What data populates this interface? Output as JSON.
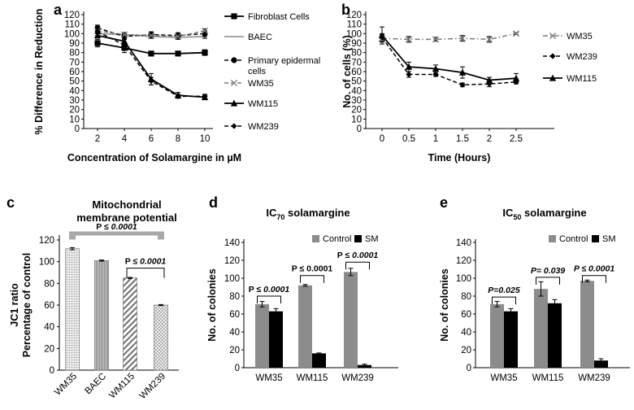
{
  "chart_data": [
    {
      "id": "a",
      "panel_label": "a",
      "type": "line",
      "xlabel": "Concentration of Solamargine in µM",
      "ylabel": "% Difference in Reduction",
      "x": [
        2,
        4,
        6,
        8,
        10
      ],
      "xticks": [
        "2",
        "4",
        "6",
        "8",
        "10"
      ],
      "yticks": [
        "0",
        "10",
        "20",
        "30",
        "40",
        "50",
        "60",
        "70",
        "80",
        "90",
        "100",
        "110",
        "120"
      ],
      "ylim": [
        0,
        120
      ],
      "series": [
        {
          "name": "Fibroblast Cells",
          "label_lines": [
            "Fibroblast Cells"
          ],
          "values": [
            90,
            85,
            79,
            79,
            80
          ],
          "errors": [
            4,
            5,
            2,
            2,
            3
          ],
          "marker": "square",
          "dash": "solid",
          "color": "#000000"
        },
        {
          "name": "BAEC",
          "label_lines": [
            "BAEC"
          ],
          "values": [
            100,
            99,
            97,
            96,
            97
          ],
          "errors": [
            2,
            2,
            2,
            2,
            2
          ],
          "marker": "none",
          "dash": "solid",
          "color": "#9a9a9a"
        },
        {
          "name": "Primary epidermal cells",
          "label_lines": [
            "Primary epidermal",
            "cells"
          ],
          "values": [
            106,
            97,
            99,
            98,
            100
          ],
          "errors": [
            3,
            3,
            3,
            3,
            3
          ],
          "marker": "circle",
          "dash": "dashed",
          "color": "#000000"
        },
        {
          "name": "WM35",
          "label_lines": [
            "WM35"
          ],
          "values": [
            103,
            99,
            98,
            97,
            103
          ],
          "errors": [
            2,
            2,
            2,
            2,
            2
          ],
          "marker": "x",
          "dash": "dashed",
          "color": "#7a7a7a"
        },
        {
          "name": "WM115",
          "label_lines": [
            "WM115"
          ],
          "values": [
            98,
            92,
            52,
            35,
            33
          ],
          "errors": [
            2,
            3,
            6,
            3,
            2
          ],
          "marker": "triangle",
          "dash": "solid",
          "color": "#000000"
        },
        {
          "name": "WM239",
          "label_lines": [
            "WM239"
          ],
          "values": [
            102,
            88,
            50,
            34,
            34
          ],
          "errors": [
            2,
            3,
            4,
            2,
            2
          ],
          "marker": "diamond",
          "dash": "dashed",
          "color": "#000000"
        }
      ]
    },
    {
      "id": "b",
      "panel_label": "b",
      "type": "line",
      "xlabel": "Time (Hours)",
      "ylabel": "No. of cells (%)",
      "x": [
        0,
        0.5,
        1,
        1.5,
        2,
        2.5
      ],
      "xticks": [
        "0",
        "0.5",
        "1",
        "1.5",
        "2",
        "2.5"
      ],
      "yticks": [
        "0",
        "10",
        "20",
        "30",
        "40",
        "50",
        "60",
        "70",
        "80",
        "90",
        "100",
        "110",
        "120"
      ],
      "ylim": [
        0,
        120
      ],
      "series": [
        {
          "name": "WM35",
          "values": [
            95,
            94,
            94,
            95,
            94,
            100
          ],
          "errors": [
            4,
            3,
            2,
            3,
            3,
            1
          ],
          "marker": "x",
          "dash": "dashdot",
          "color": "#7a7a7a"
        },
        {
          "name": "WM239",
          "values": [
            96,
            57,
            57,
            46,
            47,
            49
          ],
          "errors": [
            4,
            3,
            2,
            2,
            3,
            2
          ],
          "marker": "diamond",
          "dash": "dashed",
          "color": "#000000"
        },
        {
          "name": "WM115",
          "values": [
            98,
            65,
            63,
            59,
            51,
            53
          ],
          "errors": [
            9,
            5,
            4,
            6,
            3,
            5
          ],
          "marker": "triangle",
          "dash": "solid",
          "color": "#000000"
        }
      ]
    },
    {
      "id": "c",
      "panel_label": "c",
      "type": "bar",
      "title_lines": [
        "Mitochondrial",
        "membrane potential"
      ],
      "ylabel_lines": [
        "JC1 ratio",
        "Percentage of control"
      ],
      "categories": [
        "WM35",
        "BAEC",
        "WM115",
        "WM239"
      ],
      "values": [
        112,
        101,
        85,
        60
      ],
      "errors": [
        1,
        0.5,
        0.5,
        0.5
      ],
      "patterns": [
        "dots",
        "fine-lines",
        "diagonal",
        "crosshatch"
      ],
      "yticks": [
        "0",
        "20",
        "40",
        "60",
        "80",
        "100",
        "120"
      ],
      "ylim": [
        0,
        120
      ],
      "annotations": [
        {
          "prefix": "P ≤ ",
          "value": "0.0001",
          "from": "WM35",
          "to": "WM239",
          "at": 126
        },
        {
          "prefix": "P  ≤ ",
          "value": "0.0001",
          "from": "WM115",
          "to": "WM239",
          "at": 94
        }
      ]
    },
    {
      "id": "d",
      "panel_label": "d",
      "type": "bar",
      "title_main": "IC",
      "title_sub": "70",
      "title_rest": " solamargine",
      "ylabel": "No. of colonies",
      "categories": [
        "WM35",
        "WM115",
        "WM239"
      ],
      "series": [
        {
          "name": "Control",
          "color": "#8c8c8c",
          "values": [
            71,
            92,
            107
          ],
          "errors": [
            3,
            1,
            4
          ]
        },
        {
          "name": "SM",
          "color": "#000000",
          "values": [
            63,
            16,
            3
          ],
          "errors": [
            3,
            0.5,
            1
          ]
        }
      ],
      "yticks": [
        "0",
        "20",
        "40",
        "60",
        "80",
        "100",
        "120",
        "140"
      ],
      "ylim": [
        0,
        140
      ],
      "annotations": [
        {
          "prefix": "P  ≤ ",
          "value": "0.0001",
          "value_style": "italic",
          "category": "WM35",
          "at": 80
        },
        {
          "prefix": "P  ≤ ",
          "value": "0.0001",
          "value_style": "normal",
          "category": "WM115",
          "at": 103
        },
        {
          "prefix": "P ≤  ",
          "value": "0.0001",
          "value_style": "italic",
          "category": "WM239",
          "at": 118
        }
      ]
    },
    {
      "id": "e",
      "panel_label": "e",
      "type": "bar",
      "title_main": "IC",
      "title_sub": "50",
      "title_rest": " solamargine",
      "ylabel": "No. of colonies",
      "categories": [
        "WM35",
        "WM115",
        "WM239"
      ],
      "series": [
        {
          "name": "Control",
          "color": "#8c8c8c",
          "values": [
            71,
            88,
            97
          ],
          "errors": [
            3,
            8,
            1
          ]
        },
        {
          "name": "SM",
          "color": "#000000",
          "values": [
            63,
            72,
            8
          ],
          "errors": [
            3,
            4,
            2
          ]
        }
      ],
      "yticks": [
        "0",
        "20",
        "40",
        "60",
        "80",
        "100",
        "120",
        "140"
      ],
      "ylim": [
        0,
        140
      ],
      "annotations": [
        {
          "prefix": "",
          "value": "P=0.025",
          "value_style": "italic",
          "category": "WM35",
          "at": 79
        },
        {
          "prefix": "",
          "value": "P= 0.039",
          "value_style": "italic",
          "category": "WM115",
          "at": 101
        },
        {
          "prefix": "",
          "value": "P ≤ 0.0001",
          "value_style": "italic",
          "category": "WM239",
          "at": 103
        }
      ]
    }
  ]
}
